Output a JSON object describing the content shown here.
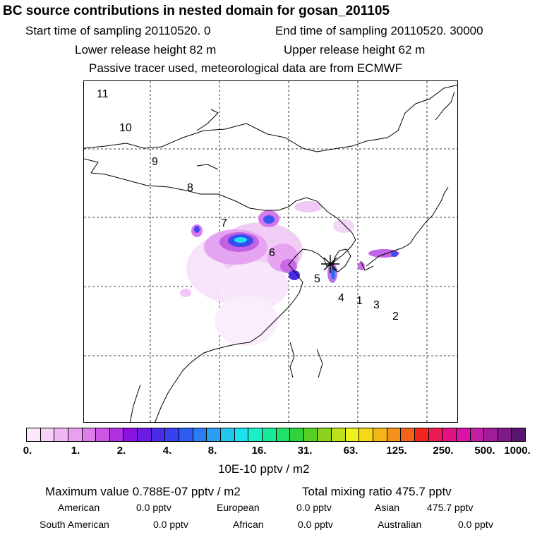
{
  "header": {
    "title": "BC  source contributions in nested domain for gosan_201105",
    "start": "Start time of sampling 20110520.     0",
    "end": "End time of sampling 20110520. 30000",
    "lower": "Lower release height   82 m",
    "upper": "Upper release height   62 m",
    "tracer": "Passive tracer used, meteorological data are from ECMWF"
  },
  "map": {
    "region_labels": [
      "11",
      "10",
      "9",
      "8",
      "7",
      "6",
      "5",
      "4",
      "1",
      "3",
      "2"
    ],
    "receptor_marker": "star-marker"
  },
  "colorbar": {
    "tick_labels": [
      "0.",
      "1.",
      "2.",
      "4.",
      "8.",
      "16.",
      "31.",
      "63.",
      "125.",
      "250.",
      "500.",
      "1000."
    ],
    "units": "10E-10 pptv / m2",
    "colors": [
      "#fbe9fb",
      "#f6d2f7",
      "#f0b8f3",
      "#eaa0f0",
      "#de7fe9",
      "#cd55e4",
      "#b130df",
      "#8c12e0",
      "#6a1ce4",
      "#4b2bea",
      "#3540ef",
      "#2d5cf1",
      "#2a7df2",
      "#2a9ff1",
      "#22c6ef",
      "#1be3ee",
      "#19f0c8",
      "#1ae99a",
      "#20e06a",
      "#2fd23a",
      "#58cf25",
      "#8bd21e",
      "#bfe11c",
      "#f0f01a",
      "#f6d818",
      "#f5b418",
      "#f59018",
      "#f4621b",
      "#f2261f",
      "#ec1a54",
      "#e31280",
      "#d815a6",
      "#c01ea3",
      "#9f1d97",
      "#7d1b86",
      "#5a1570"
    ]
  },
  "stats": {
    "maximum": "Maximum value  0.788E-07 pptv / m2",
    "total": "Total mixing ratio      475.7 pptv"
  },
  "contributions": {
    "american": {
      "label": "American",
      "value": "0.0 pptv"
    },
    "european": {
      "label": "European",
      "value": "0.0 pptv"
    },
    "asian": {
      "label": "Asian",
      "value": "475.7 pptv"
    },
    "south_american": {
      "label": "South American",
      "value": "0.0 pptv"
    },
    "african": {
      "label": "African",
      "value": "0.0 pptv"
    },
    "australian": {
      "label": "Australian",
      "value": "0.0 pptv"
    }
  }
}
